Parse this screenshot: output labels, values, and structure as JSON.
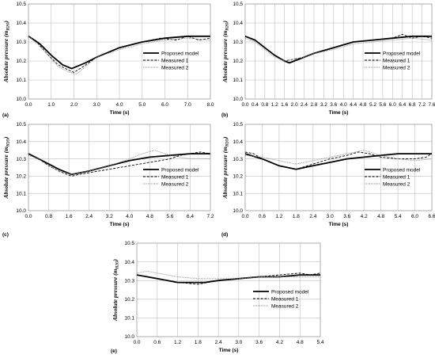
{
  "chart_data": [
    {
      "type": "line",
      "panel": "(a)",
      "xlabel": "Time (s)",
      "ylabel": "Absolute pressure (m",
      "ylabel_sub": "H2O",
      "ylabel_end": ")",
      "xlim": [
        0,
        8
      ],
      "ylim": [
        10.0,
        10.5
      ],
      "xticks": [
        "0.0",
        "1.0",
        "2.0",
        "3.0",
        "4.0",
        "5.0",
        "6.0",
        "7.0",
        "8.0"
      ],
      "yticks": [
        "10.0",
        "10.1",
        "10.2",
        "10.3",
        "10.4",
        "10.5"
      ],
      "grid": true,
      "legend": "right",
      "series": [
        {
          "name": "Proposed model",
          "style": "solid",
          "x": [
            0,
            0.5,
            1,
            1.5,
            1.9,
            2.5,
            3,
            4,
            5,
            6,
            7,
            8
          ],
          "y": [
            10.33,
            10.29,
            10.23,
            10.18,
            10.16,
            10.19,
            10.22,
            10.27,
            10.3,
            10.32,
            10.33,
            10.33
          ]
        },
        {
          "name": "Measured 1",
          "style": "dashed",
          "x": [
            0,
            0.3,
            0.8,
            1.3,
            1.8,
            2.0,
            2.4,
            3,
            4,
            5,
            5.8,
            6.5,
            7,
            7.5,
            8
          ],
          "y": [
            10.33,
            10.31,
            10.24,
            10.18,
            10.15,
            10.14,
            10.17,
            10.22,
            10.27,
            10.3,
            10.32,
            10.31,
            10.33,
            10.31,
            10.32
          ]
        },
        {
          "name": "Measured 2",
          "style": "dotted",
          "x": [
            0,
            0.3,
            0.8,
            1.3,
            1.8,
            2.1,
            2.5,
            3,
            4,
            5,
            6,
            7,
            8
          ],
          "y": [
            10.33,
            10.3,
            10.24,
            10.17,
            10.14,
            10.13,
            10.17,
            10.22,
            10.26,
            10.29,
            10.31,
            10.32,
            10.31
          ]
        }
      ]
    },
    {
      "type": "line",
      "panel": "(b)",
      "xlabel": "Time (s)",
      "ylabel": "Absolute pressure (m",
      "ylabel_sub": "H2O",
      "ylabel_end": ")",
      "xlim": [
        0,
        7.6
      ],
      "ylim": [
        10.0,
        10.5
      ],
      "xticks": [
        "0.0",
        "0.4",
        "0.8",
        "1.2",
        "1.6",
        "2.0",
        "2.4",
        "2.8",
        "3.2",
        "3.6",
        "4.0",
        "4.4",
        "4.8",
        "5.2",
        "5.6",
        "6.0",
        "6.4",
        "6.8",
        "7.2",
        "7.6"
      ],
      "yticks": [
        "10.0",
        "10.1",
        "10.2",
        "10.3",
        "10.4",
        "10.5"
      ],
      "grid": true,
      "legend": "right",
      "series": [
        {
          "name": "Proposed model",
          "style": "solid",
          "x": [
            0,
            0.4,
            0.8,
            1.2,
            1.6,
            1.8,
            2.2,
            2.8,
            3.6,
            4.4,
            5.2,
            6.0,
            6.8,
            7.6
          ],
          "y": [
            10.33,
            10.31,
            10.27,
            10.23,
            10.2,
            10.19,
            10.21,
            10.24,
            10.27,
            10.3,
            10.31,
            10.32,
            10.33,
            10.33
          ]
        },
        {
          "name": "Measured 1",
          "style": "dashed",
          "x": [
            0,
            0.4,
            0.8,
            1.2,
            1.6,
            2.0,
            2.4,
            2.8,
            3.6,
            4.4,
            5.2,
            6.0,
            6.4,
            6.8,
            7.2,
            7.6
          ],
          "y": [
            10.33,
            10.31,
            10.27,
            10.23,
            10.2,
            10.21,
            10.22,
            10.24,
            10.27,
            10.3,
            10.31,
            10.32,
            10.34,
            10.32,
            10.33,
            10.32
          ]
        },
        {
          "name": "Measured 2",
          "style": "dotted",
          "x": [
            0,
            0.4,
            0.8,
            1.2,
            1.6,
            2.0,
            2.4,
            2.8,
            3.6,
            4.4,
            5.2,
            6.0,
            6.8,
            7.6
          ],
          "y": [
            10.32,
            10.3,
            10.26,
            10.22,
            10.2,
            10.21,
            10.22,
            10.24,
            10.26,
            10.29,
            10.3,
            10.31,
            10.32,
            10.31
          ]
        }
      ]
    },
    {
      "type": "line",
      "panel": "(c)",
      "xlabel": "Time (s)",
      "ylabel": "Absolute pressure (m",
      "ylabel_sub": "H2O",
      "ylabel_end": ")",
      "xlim": [
        0,
        7.2
      ],
      "ylim": [
        10.0,
        10.5
      ],
      "xticks": [
        "0.0",
        "0.8",
        "1.6",
        "2.4",
        "3.2",
        "4.0",
        "4.8",
        "5.6",
        "6.4",
        "7.2"
      ],
      "yticks": [
        "10.0",
        "10.1",
        "10.2",
        "10.3",
        "10.4",
        "10.5"
      ],
      "grid": true,
      "legend": "right",
      "series": [
        {
          "name": "Proposed model",
          "style": "solid",
          "x": [
            0,
            0.4,
            0.8,
            1.2,
            1.7,
            2.4,
            3.2,
            4.0,
            4.8,
            5.6,
            6.4,
            7.2
          ],
          "y": [
            10.33,
            10.3,
            10.27,
            10.24,
            10.21,
            10.23,
            10.26,
            10.29,
            10.31,
            10.32,
            10.33,
            10.33
          ]
        },
        {
          "name": "Measured 1",
          "style": "dashed",
          "x": [
            0,
            0.4,
            0.8,
            1.2,
            1.7,
            2.0,
            2.4,
            3.2,
            4.0,
            4.8,
            5.6,
            6.0,
            6.4,
            6.8,
            7.2
          ],
          "y": [
            10.33,
            10.3,
            10.26,
            10.23,
            10.2,
            10.21,
            10.22,
            10.24,
            10.26,
            10.28,
            10.3,
            10.32,
            10.33,
            10.34,
            10.33
          ]
        },
        {
          "name": "Measured 2",
          "style": "dotted",
          "x": [
            0,
            0.4,
            0.8,
            1.2,
            1.7,
            2.4,
            3.2,
            4.0,
            4.5,
            5.0,
            5.6,
            6.0,
            6.4,
            7.2
          ],
          "y": [
            10.32,
            10.3,
            10.26,
            10.23,
            10.21,
            10.23,
            10.26,
            10.3,
            10.33,
            10.35,
            10.32,
            10.31,
            10.3,
            10.3
          ]
        }
      ]
    },
    {
      "type": "line",
      "panel": "(d)",
      "xlabel": "Time (s)",
      "ylabel": "Absolute pressure (m",
      "ylabel_sub": "H2O",
      "ylabel_end": ")",
      "xlim": [
        0,
        6.6
      ],
      "ylim": [
        10.0,
        10.5
      ],
      "xticks": [
        "0.0",
        "0.6",
        "1.2",
        "1.8",
        "2.4",
        "3.0",
        "3.6",
        "4.2",
        "4.8",
        "5.4",
        "6.0",
        "6.6"
      ],
      "yticks": [
        "10.0",
        "10.1",
        "10.2",
        "10.3",
        "10.4",
        "10.5"
      ],
      "grid": true,
      "legend": "right",
      "series": [
        {
          "name": "Proposed model",
          "style": "solid",
          "x": [
            0,
            0.6,
            1.2,
            1.8,
            2.4,
            3.0,
            3.6,
            4.2,
            4.8,
            5.4,
            6.0,
            6.6
          ],
          "y": [
            10.33,
            10.3,
            10.26,
            10.24,
            10.26,
            10.28,
            10.3,
            10.31,
            10.32,
            10.33,
            10.33,
            10.33
          ]
        },
        {
          "name": "Measured 1",
          "style": "dashed",
          "x": [
            0,
            0.3,
            0.6,
            1.2,
            1.8,
            2.4,
            3.0,
            3.6,
            4.0,
            4.4,
            4.8,
            5.4,
            6.0,
            6.4,
            6.6
          ],
          "y": [
            10.34,
            10.33,
            10.3,
            10.26,
            10.24,
            10.27,
            10.3,
            10.32,
            10.34,
            10.33,
            10.31,
            10.3,
            10.3,
            10.31,
            10.33
          ]
        },
        {
          "name": "Measured 2",
          "style": "dotted",
          "x": [
            0,
            0.6,
            1.2,
            1.8,
            2.4,
            3.0,
            3.6,
            4.2,
            4.8,
            5.4,
            6.0,
            6.6
          ],
          "y": [
            10.32,
            10.31,
            10.29,
            10.27,
            10.29,
            10.31,
            10.33,
            10.35,
            10.32,
            10.3,
            10.29,
            10.3
          ]
        }
      ]
    },
    {
      "type": "line",
      "panel": "(e)",
      "xlabel": "Time (s)",
      "ylabel": "Absolute pressure (m",
      "ylabel_sub": "H2O",
      "ylabel_end": ")",
      "xlim": [
        0,
        5.4
      ],
      "ylim": [
        10.0,
        10.5
      ],
      "xticks": [
        "0.0",
        "0.6",
        "1.2",
        "1.8",
        "2.4",
        "3.0",
        "3.6",
        "4.2",
        "4.8",
        "5.4"
      ],
      "yticks": [
        "10.0",
        "10.1",
        "10.2",
        "10.3",
        "10.4",
        "10.5"
      ],
      "grid": true,
      "legend": "right",
      "series": [
        {
          "name": "Proposed model",
          "style": "solid",
          "x": [
            0,
            0.6,
            1.2,
            1.6,
            2.0,
            2.4,
            3.0,
            3.6,
            4.2,
            4.8,
            5.4
          ],
          "y": [
            10.33,
            10.31,
            10.29,
            10.29,
            10.29,
            10.3,
            10.31,
            10.32,
            10.32,
            10.33,
            10.33
          ]
        },
        {
          "name": "Measured 1",
          "style": "dashed",
          "x": [
            0,
            0.6,
            1.2,
            1.8,
            2.4,
            3.0,
            3.6,
            4.2,
            4.8,
            5.1,
            5.4
          ],
          "y": [
            10.33,
            10.31,
            10.29,
            10.28,
            10.3,
            10.31,
            10.32,
            10.33,
            10.34,
            10.33,
            10.34
          ]
        },
        {
          "name": "Measured 2",
          "style": "dotted",
          "x": [
            0,
            0.3,
            0.6,
            1.2,
            1.8,
            2.4,
            3.0,
            3.6,
            4.2,
            4.8,
            5.4
          ],
          "y": [
            10.34,
            10.35,
            10.34,
            10.32,
            10.31,
            10.31,
            10.31,
            10.32,
            10.32,
            10.32,
            10.32
          ]
        }
      ]
    }
  ]
}
